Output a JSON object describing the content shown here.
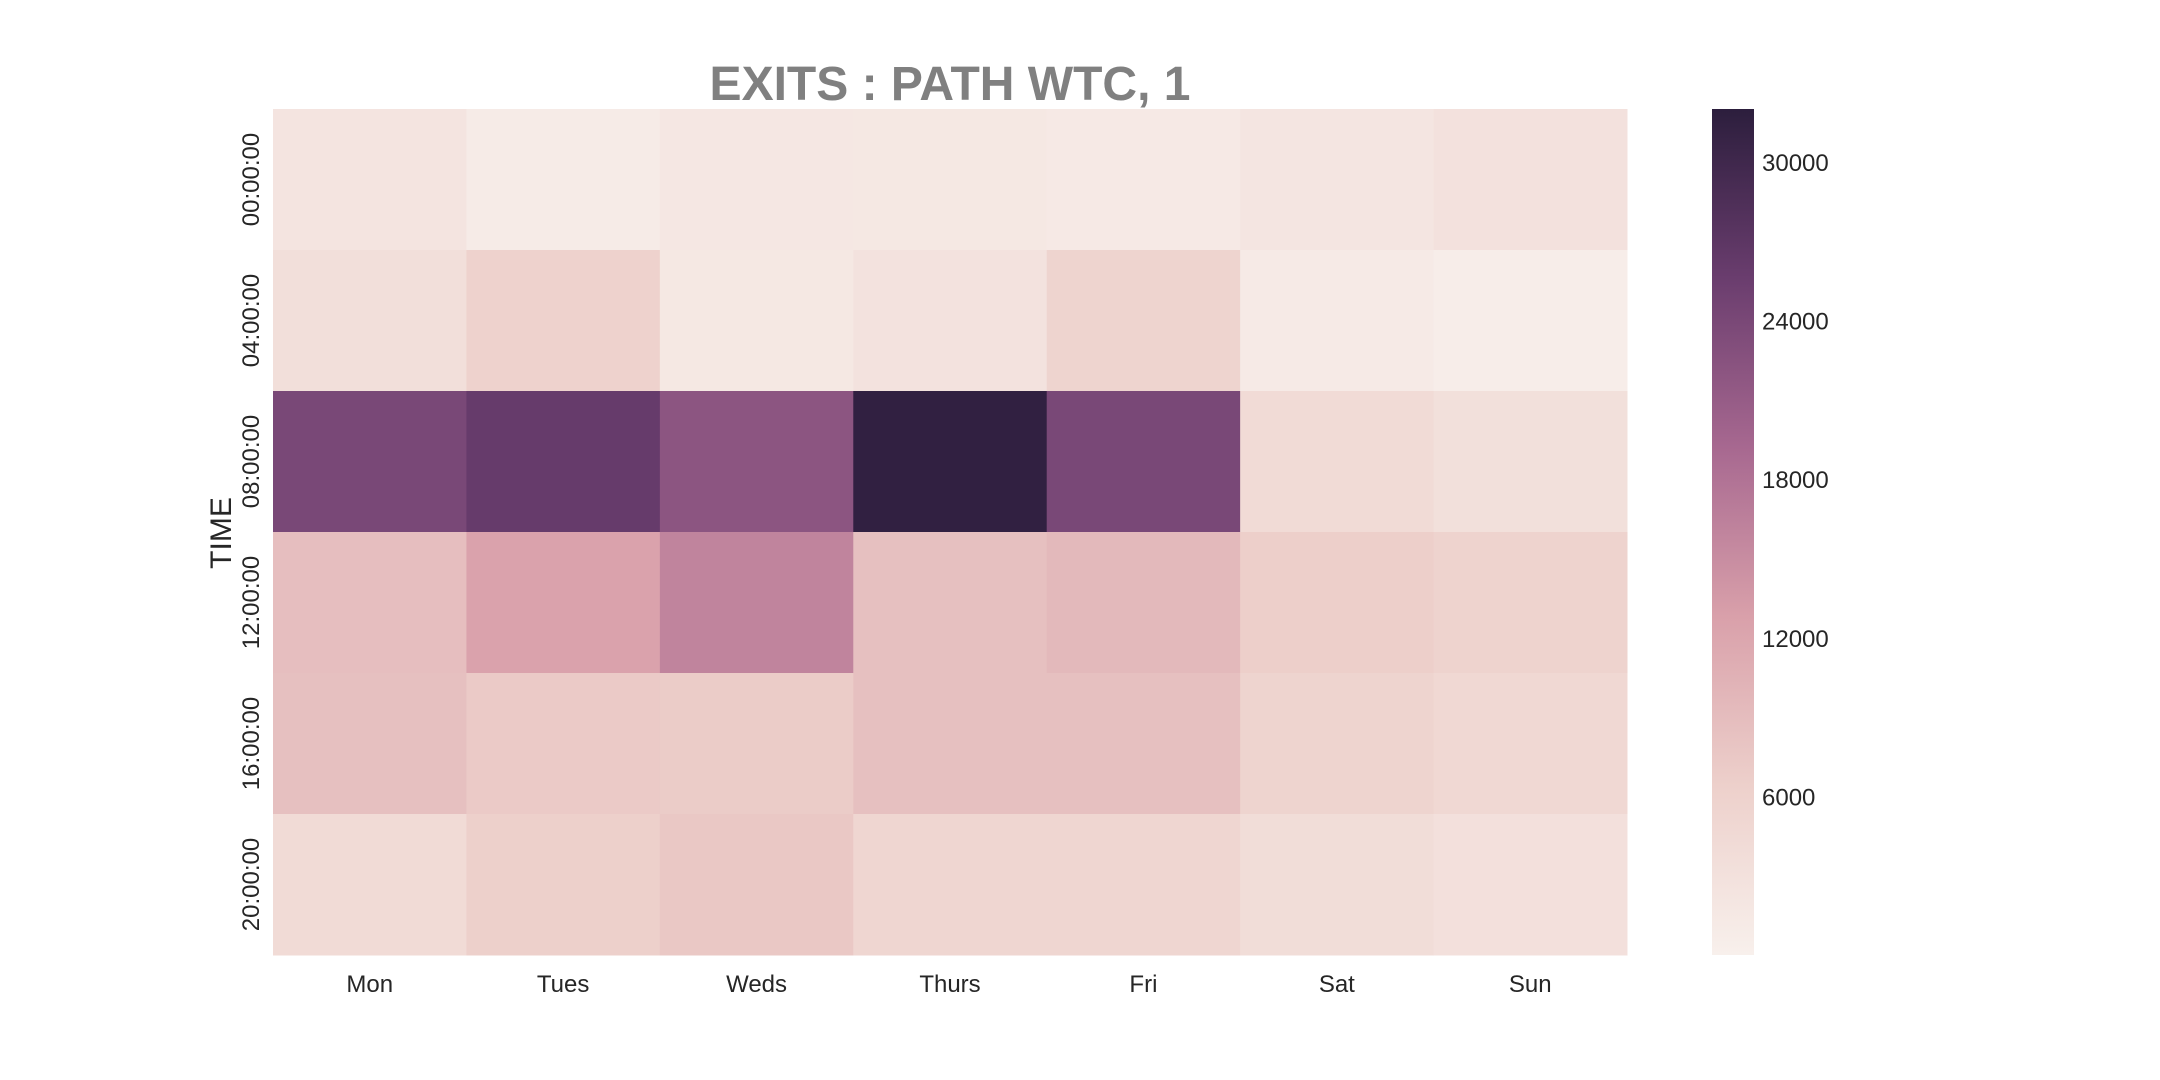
{
  "chart_data": {
    "type": "heatmap",
    "title": "EXITS : PATH WTC, 1",
    "xlabel": "",
    "ylabel": "TIME",
    "x_categories": [
      "Mon",
      "Tues",
      "Weds",
      "Thurs",
      "Fri",
      "Sat",
      "Sun"
    ],
    "y_categories": [
      "00:00:00",
      "04:00:00",
      "08:00:00",
      "12:00:00",
      "16:00:00",
      "20:00:00"
    ],
    "values": [
      [
        2400,
        1000,
        1800,
        1700,
        1400,
        2200,
        3000
      ],
      [
        3500,
        6000,
        1700,
        2800,
        5600,
        1200,
        600
      ],
      [
        24000,
        26000,
        22000,
        31500,
        24000,
        4200,
        3300
      ],
      [
        8800,
        12500,
        16000,
        8600,
        9500,
        6500,
        5800
      ],
      [
        8600,
        7200,
        7000,
        8600,
        8500,
        5600,
        4800
      ],
      [
        4200,
        6400,
        7500,
        5200,
        5300,
        3800,
        3200
      ]
    ],
    "colorbar": {
      "vmin": 0,
      "vmax": 32000,
      "ticks": [
        6000,
        12000,
        18000,
        24000,
        30000
      ],
      "tick_labels": [
        "6000",
        "12000",
        "18000",
        "24000",
        "30000"
      ]
    },
    "colormap_stops": [
      "#f8f0ec",
      "#edd0cb",
      "#d9a0aa",
      "#a76890",
      "#6a3d6e",
      "#2c1e3d"
    ],
    "grid": false
  }
}
